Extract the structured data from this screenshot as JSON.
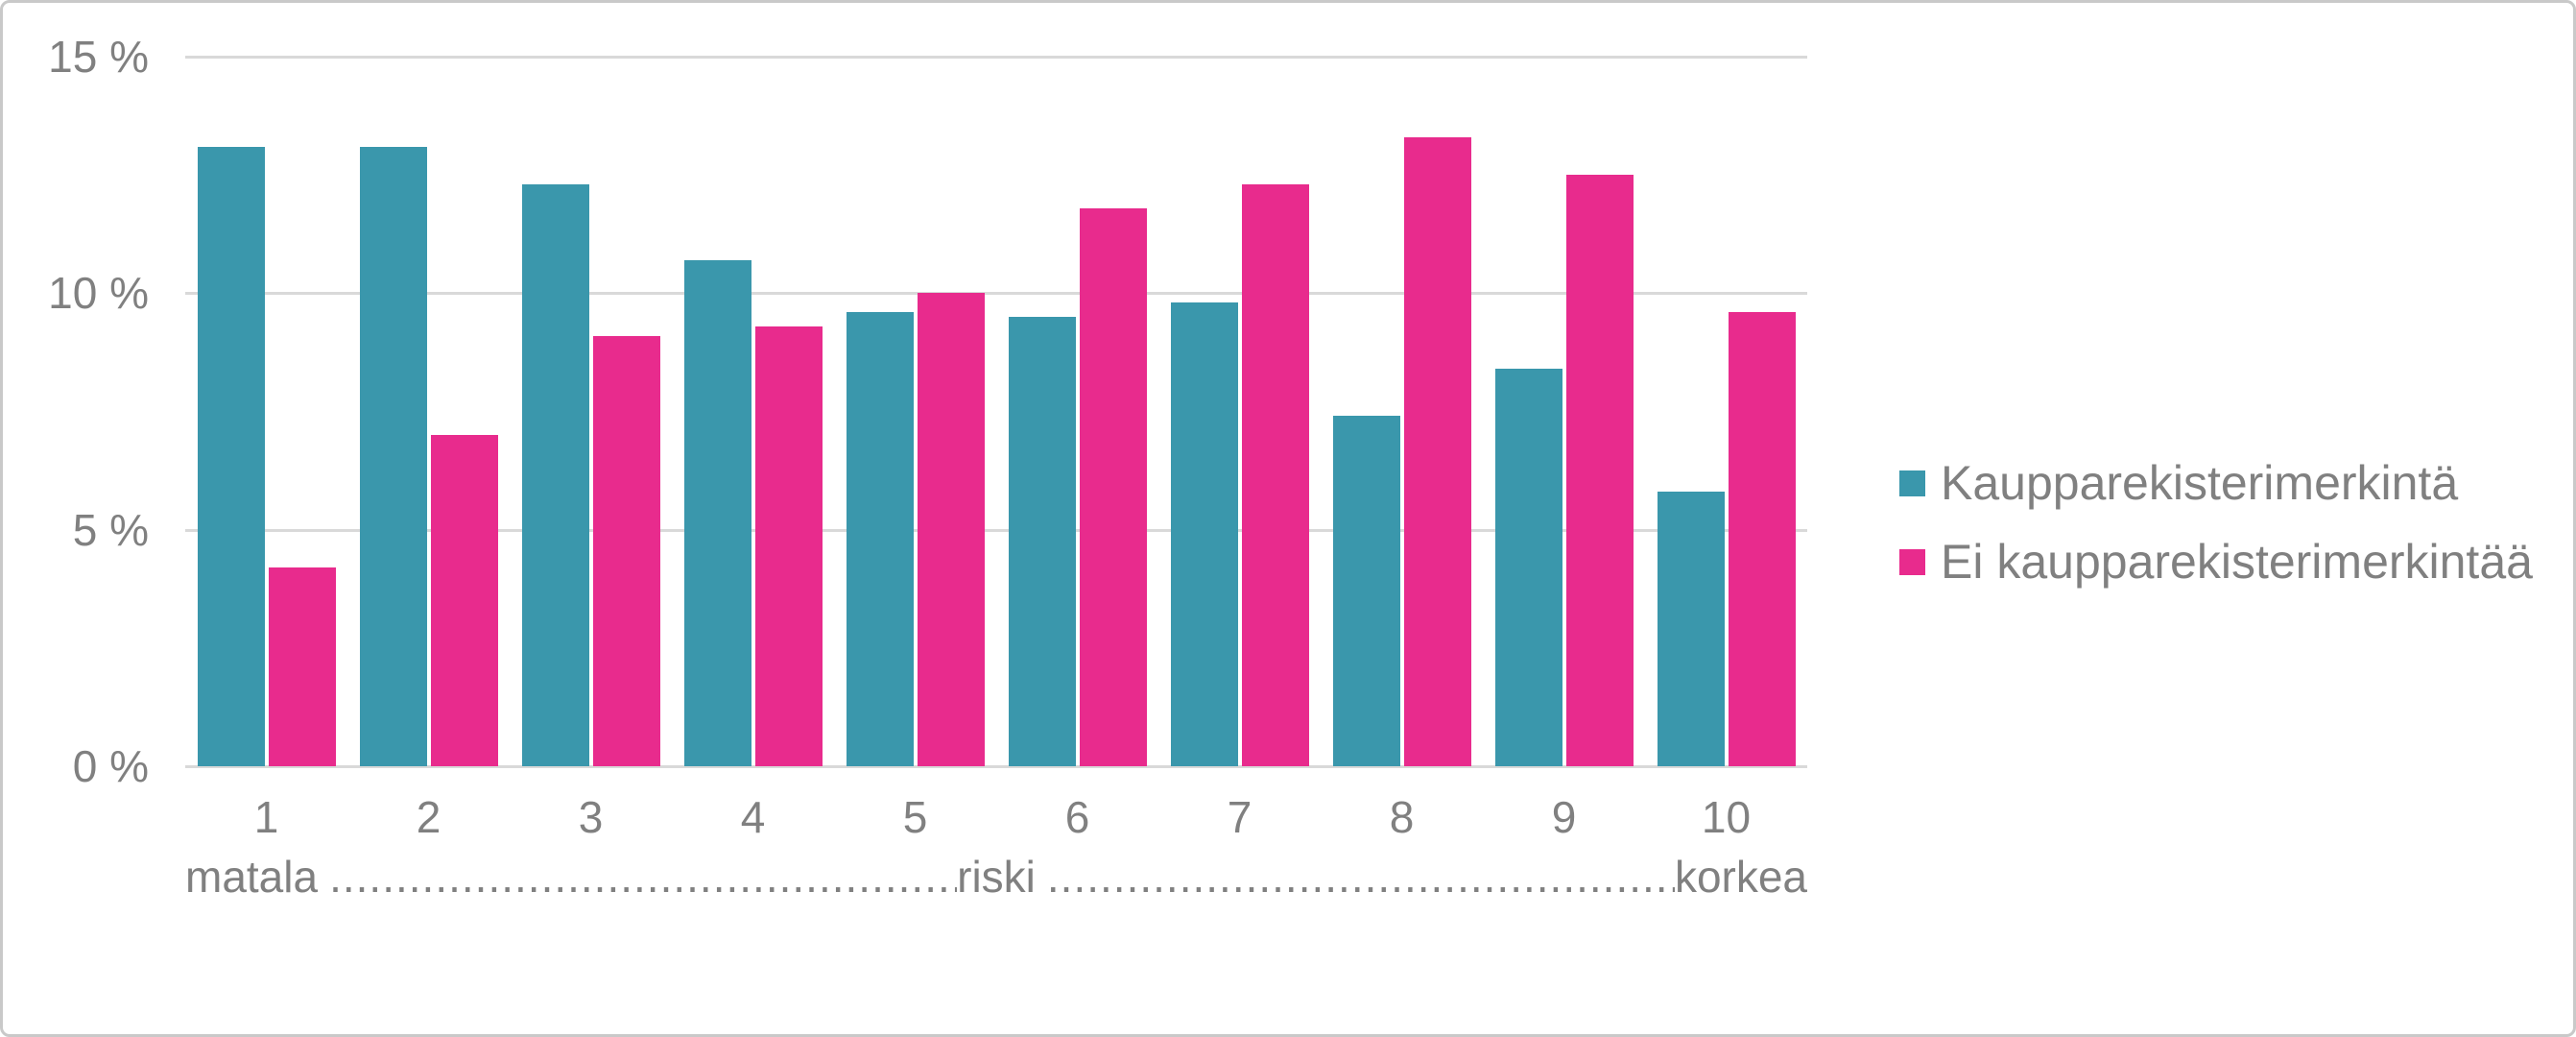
{
  "style": {
    "background": "#FFFFFF",
    "frame_border_color": "#C9C9C9",
    "text_color": "#808080",
    "gridline_color": "#D9D9D9"
  },
  "chart_data": {
    "type": "bar",
    "title": "",
    "categories": [
      "1",
      "2",
      "3",
      "4",
      "5",
      "6",
      "7",
      "8",
      "9",
      "10"
    ],
    "series": [
      {
        "name": "Kaupparekisterimerkintä",
        "color": "#3A97AC",
        "values": [
          13.1,
          13.1,
          12.3,
          10.7,
          9.6,
          9.5,
          9.8,
          7.4,
          8.4,
          5.8
        ]
      },
      {
        "name": "Ei kaupparekisterimerkintää",
        "color": "#E82B8D",
        "values": [
          4.2,
          7.0,
          9.1,
          9.3,
          10.0,
          11.8,
          12.3,
          13.3,
          12.5,
          9.6
        ]
      }
    ],
    "yticks": [
      {
        "label": "15 %",
        "value": 15
      },
      {
        "label": "10 %",
        "value": 10
      },
      {
        "label": "5 %",
        "value": 5
      },
      {
        "label": "0 %",
        "value": 0
      }
    ],
    "ylim": [
      0,
      15
    ],
    "grid": true,
    "legend_position": "right",
    "x_annotation": {
      "left_word": "matala",
      "center_word": "riski",
      "right_word": "korkea",
      "leader_dots": ".........................................................................................."
    }
  }
}
